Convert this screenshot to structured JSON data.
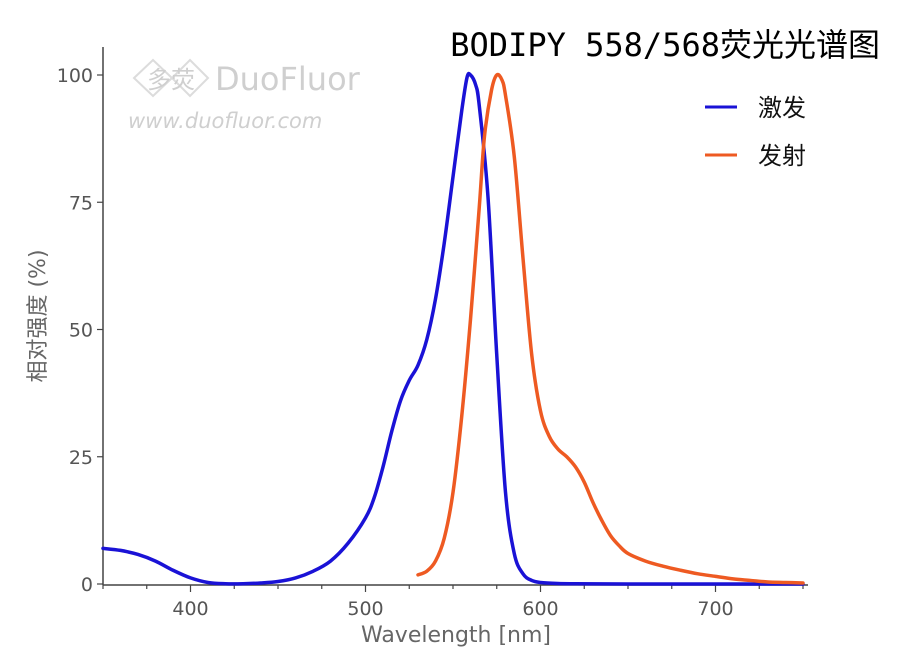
{
  "watermark": {
    "logo_chinese": "多荧",
    "brand": "DuoFluor",
    "url": "www.duofluor.com"
  },
  "colors": {
    "excitation": "#1a12d6",
    "emission": "#ee5a22",
    "axis": "#444444",
    "tick_label": "#555555"
  },
  "chart_data": {
    "type": "line",
    "title": "BODIPY 558/568荧光光谱图",
    "xlabel": "Wavelength [nm]",
    "ylabel": "相对强度 (%)",
    "xlim": [
      350,
      750
    ],
    "ylim": [
      0,
      100
    ],
    "xticks": [
      400,
      500,
      600,
      700
    ],
    "yticks": [
      0,
      25,
      50,
      75,
      100
    ],
    "grid": false,
    "legend_position": "top-right",
    "series": [
      {
        "name": "激发",
        "color": "#1a12d6",
        "points": [
          [
            350,
            7
          ],
          [
            360,
            6.6
          ],
          [
            370,
            5.8
          ],
          [
            380,
            4.5
          ],
          [
            390,
            2.7
          ],
          [
            400,
            1.2
          ],
          [
            410,
            0.3
          ],
          [
            420,
            0.05
          ],
          [
            430,
            0.05
          ],
          [
            440,
            0.2
          ],
          [
            450,
            0.5
          ],
          [
            460,
            1.2
          ],
          [
            470,
            2.5
          ],
          [
            480,
            4.5
          ],
          [
            490,
            8
          ],
          [
            500,
            13
          ],
          [
            505,
            17
          ],
          [
            510,
            23
          ],
          [
            515,
            30
          ],
          [
            520,
            36
          ],
          [
            525,
            40
          ],
          [
            530,
            43
          ],
          [
            535,
            48
          ],
          [
            540,
            56
          ],
          [
            545,
            67
          ],
          [
            550,
            80
          ],
          [
            555,
            93
          ],
          [
            558,
            99.5
          ],
          [
            560,
            100
          ],
          [
            563,
            98
          ],
          [
            565,
            94
          ],
          [
            570,
            76
          ],
          [
            575,
            45
          ],
          [
            580,
            18
          ],
          [
            585,
            6
          ],
          [
            590,
            2
          ],
          [
            595,
            0.7
          ],
          [
            600,
            0.3
          ],
          [
            610,
            0.1
          ],
          [
            620,
            0.05
          ],
          [
            650,
            0
          ],
          [
            700,
            0
          ],
          [
            750,
            0
          ]
        ]
      },
      {
        "name": "发射",
        "color": "#ee5a22",
        "points": [
          [
            530,
            1.8
          ],
          [
            535,
            2.5
          ],
          [
            540,
            4.5
          ],
          [
            545,
            9
          ],
          [
            550,
            18
          ],
          [
            555,
            33
          ],
          [
            560,
            52
          ],
          [
            565,
            74
          ],
          [
            568,
            88
          ],
          [
            572,
            97
          ],
          [
            575,
            100
          ],
          [
            578,
            99
          ],
          [
            580,
            96
          ],
          [
            585,
            84
          ],
          [
            590,
            64
          ],
          [
            595,
            45
          ],
          [
            600,
            34
          ],
          [
            605,
            29
          ],
          [
            610,
            26.5
          ],
          [
            615,
            25
          ],
          [
            620,
            23
          ],
          [
            625,
            20
          ],
          [
            630,
            16
          ],
          [
            635,
            12.5
          ],
          [
            640,
            9.5
          ],
          [
            645,
            7.5
          ],
          [
            650,
            6
          ],
          [
            660,
            4.5
          ],
          [
            670,
            3.5
          ],
          [
            680,
            2.7
          ],
          [
            690,
            2
          ],
          [
            700,
            1.5
          ],
          [
            710,
            1
          ],
          [
            720,
            0.7
          ],
          [
            730,
            0.4
          ],
          [
            740,
            0.3
          ],
          [
            750,
            0.2
          ]
        ]
      }
    ]
  }
}
